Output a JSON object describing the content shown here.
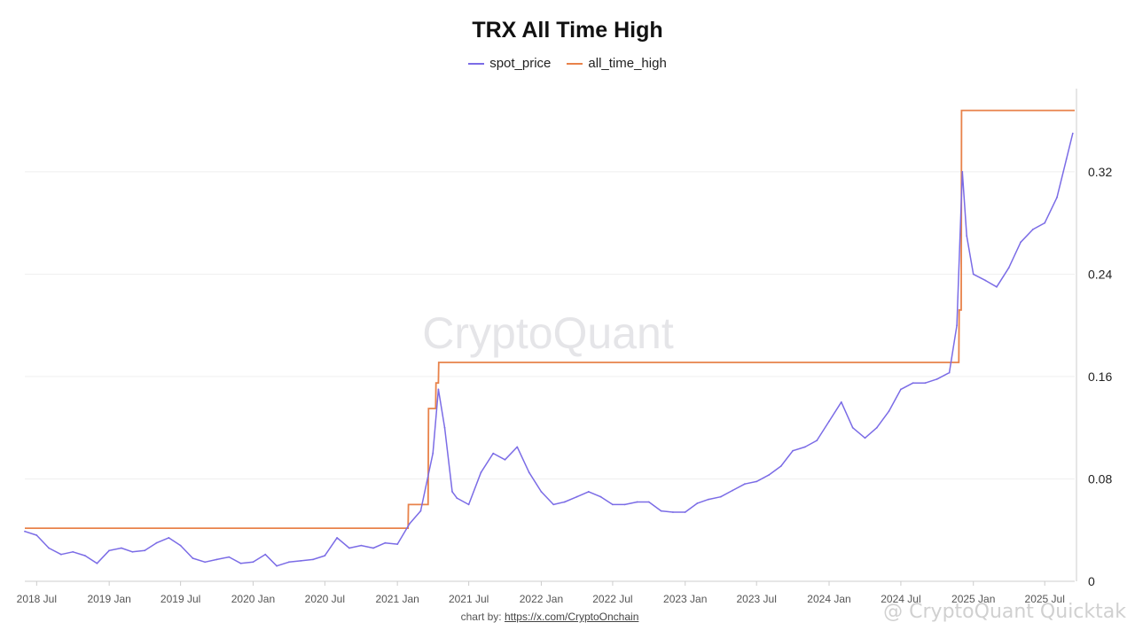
{
  "chart_data": {
    "type": "line",
    "title": "TRX All Time High",
    "xlabel": "",
    "ylabel": "",
    "ylim": [
      0,
      0.385
    ],
    "y_ticks": [
      0,
      0.08,
      0.16,
      0.24,
      0.32
    ],
    "y_tick_labels": [
      "0",
      "0.08",
      "0.16",
      "0.24",
      "0.32"
    ],
    "x_tick_labels": [
      "2018 Jul",
      "2019 Jan",
      "2019 Jul",
      "2020 Jan",
      "2020 Jul",
      "2021 Jan",
      "2021 Jul",
      "2022 Jan",
      "2022 Jul",
      "2023 Jan",
      "2023 Jul",
      "2024 Jan",
      "2024 Jul",
      "2025 Jan",
      "2025 Jul"
    ],
    "x_tick_dates": [
      "2018-07-01",
      "2019-01-01",
      "2019-07-01",
      "2020-01-01",
      "2020-07-01",
      "2021-01-01",
      "2021-07-01",
      "2022-01-01",
      "2022-07-01",
      "2023-01-01",
      "2023-07-01",
      "2024-01-01",
      "2024-07-01",
      "2025-01-01",
      "2025-07-01"
    ],
    "x_range": [
      "2018-06-01",
      "2025-09-15"
    ],
    "grid": true,
    "legend_position": "top-center",
    "series": [
      {
        "name": "spot_price",
        "color": "#7b6ce6",
        "x": [
          "2018-06-01",
          "2018-07-01",
          "2018-08-01",
          "2018-09-01",
          "2018-10-01",
          "2018-11-01",
          "2018-12-01",
          "2019-01-01",
          "2019-02-01",
          "2019-03-01",
          "2019-04-01",
          "2019-05-01",
          "2019-06-01",
          "2019-07-01",
          "2019-08-01",
          "2019-09-01",
          "2019-10-01",
          "2019-11-01",
          "2019-12-01",
          "2020-01-01",
          "2020-02-01",
          "2020-03-01",
          "2020-04-01",
          "2020-05-01",
          "2020-06-01",
          "2020-07-01",
          "2020-08-01",
          "2020-09-01",
          "2020-10-01",
          "2020-11-01",
          "2020-12-01",
          "2021-01-01",
          "2021-02-01",
          "2021-03-01",
          "2021-04-01",
          "2021-04-15",
          "2021-05-01",
          "2021-05-20",
          "2021-06-01",
          "2021-07-01",
          "2021-08-01",
          "2021-09-01",
          "2021-10-01",
          "2021-11-01",
          "2021-12-01",
          "2022-01-01",
          "2022-02-01",
          "2022-03-01",
          "2022-04-01",
          "2022-05-01",
          "2022-06-01",
          "2022-07-01",
          "2022-08-01",
          "2022-09-01",
          "2022-10-01",
          "2022-11-01",
          "2022-12-01",
          "2023-01-01",
          "2023-02-01",
          "2023-03-01",
          "2023-04-01",
          "2023-05-01",
          "2023-06-01",
          "2023-07-01",
          "2023-08-01",
          "2023-09-01",
          "2023-10-01",
          "2023-11-01",
          "2023-12-01",
          "2024-01-01",
          "2024-02-01",
          "2024-03-01",
          "2024-04-01",
          "2024-05-01",
          "2024-06-01",
          "2024-07-01",
          "2024-08-01",
          "2024-09-01",
          "2024-10-01",
          "2024-11-01",
          "2024-11-20",
          "2024-12-04",
          "2024-12-15",
          "2025-01-01",
          "2025-02-01",
          "2025-03-01",
          "2025-04-01",
          "2025-05-01",
          "2025-06-01",
          "2025-07-01",
          "2025-08-01",
          "2025-08-25",
          "2025-09-10"
        ],
        "values": [
          0.039,
          0.036,
          0.026,
          0.021,
          0.023,
          0.02,
          0.014,
          0.024,
          0.026,
          0.023,
          0.024,
          0.03,
          0.034,
          0.028,
          0.018,
          0.015,
          0.017,
          0.019,
          0.014,
          0.015,
          0.021,
          0.012,
          0.015,
          0.016,
          0.017,
          0.02,
          0.034,
          0.026,
          0.028,
          0.026,
          0.03,
          0.029,
          0.045,
          0.055,
          0.1,
          0.15,
          0.12,
          0.07,
          0.065,
          0.06,
          0.085,
          0.1,
          0.095,
          0.105,
          0.085,
          0.07,
          0.06,
          0.062,
          0.066,
          0.07,
          0.066,
          0.06,
          0.06,
          0.062,
          0.062,
          0.055,
          0.054,
          0.054,
          0.061,
          0.064,
          0.066,
          0.071,
          0.076,
          0.078,
          0.083,
          0.09,
          0.102,
          0.105,
          0.11,
          0.125,
          0.14,
          0.12,
          0.112,
          0.12,
          0.133,
          0.15,
          0.155,
          0.155,
          0.158,
          0.163,
          0.2,
          0.32,
          0.27,
          0.24,
          0.235,
          0.23,
          0.245,
          0.265,
          0.275,
          0.28,
          0.3,
          0.33,
          0.35
        ]
      },
      {
        "name": "all_time_high",
        "color": "#e8824a",
        "x": [
          "2018-06-01",
          "2021-01-28",
          "2021-01-29",
          "2021-03-20",
          "2021-03-21",
          "2021-04-08",
          "2021-04-09",
          "2021-04-15",
          "2021-04-16",
          "2024-11-25",
          "2024-11-26",
          "2024-12-01",
          "2024-12-02",
          "2025-09-15"
        ],
        "values": [
          0.0415,
          0.0415,
          0.06,
          0.06,
          0.135,
          0.135,
          0.155,
          0.155,
          0.171,
          0.171,
          0.212,
          0.212,
          0.368,
          0.368
        ]
      }
    ]
  },
  "legend": [
    {
      "label": "spot_price",
      "color": "#7b6ce6"
    },
    {
      "label": "all_time_high",
      "color": "#e8824a"
    }
  ],
  "watermark": "CryptoQuant",
  "footer": {
    "prefix": "chart by: ",
    "link_text": "https://x.com/CryptoOnchain"
  },
  "corner_watermark": "@ CryptoQuant Quicktak"
}
